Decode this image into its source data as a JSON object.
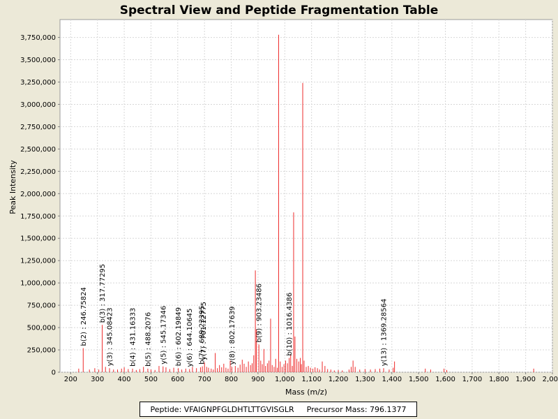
{
  "chart_data": {
    "type": "bar",
    "title": "Spectral View and Peptide Fragmentation Table",
    "xlabel": "Mass (m/z)",
    "ylabel": "Peak Intensity",
    "xlim": [
      160,
      2000
    ],
    "ylim": [
      0,
      3950000
    ],
    "xticks": [
      200,
      300,
      400,
      500,
      600,
      700,
      800,
      900,
      1000,
      1100,
      1200,
      1300,
      1400,
      1500,
      1600,
      1700,
      1800,
      1900,
      2000
    ],
    "xtick_labels": [
      "200",
      "300",
      "400",
      "500",
      "600",
      "700",
      "800",
      "900",
      "1,000",
      "1,100",
      "1,200",
      "1,300",
      "1,400",
      "1,500",
      "1,600",
      "1,700",
      "1,800",
      "1,900",
      "2,000"
    ],
    "yticks": [
      0,
      250000,
      500000,
      750000,
      1000000,
      1250000,
      1500000,
      1750000,
      2000000,
      2250000,
      2500000,
      2750000,
      3000000,
      3250000,
      3500000,
      3750000
    ],
    "ytick_labels": [
      "0",
      "250,000",
      "500,000",
      "750,000",
      "1,000,000",
      "1,250,000",
      "1,500,000",
      "1,750,000",
      "2,000,000",
      "2,250,000",
      "2,500,000",
      "2,750,000",
      "3,000,000",
      "3,250,000",
      "3,500,000",
      "3,750,000"
    ],
    "grid": true,
    "peak_color": "#ee2b2b",
    "peaks": [
      {
        "x": 230,
        "y": 40000
      },
      {
        "x": 246.75824,
        "y": 270000
      },
      {
        "x": 270,
        "y": 30000
      },
      {
        "x": 290,
        "y": 45000
      },
      {
        "x": 305,
        "y": 30000
      },
      {
        "x": 317.77295,
        "y": 530000
      },
      {
        "x": 330,
        "y": 60000
      },
      {
        "x": 345.08423,
        "y": 45000
      },
      {
        "x": 360,
        "y": 30000
      },
      {
        "x": 375,
        "y": 30000
      },
      {
        "x": 390,
        "y": 40000
      },
      {
        "x": 400,
        "y": 55000
      },
      {
        "x": 415,
        "y": 35000
      },
      {
        "x": 431.16333,
        "y": 40000
      },
      {
        "x": 445,
        "y": 25000
      },
      {
        "x": 458,
        "y": 35000
      },
      {
        "x": 472,
        "y": 60000
      },
      {
        "x": 488.2076,
        "y": 40000
      },
      {
        "x": 500,
        "y": 30000
      },
      {
        "x": 515,
        "y": 25000
      },
      {
        "x": 530,
        "y": 70000
      },
      {
        "x": 545.17346,
        "y": 65000
      },
      {
        "x": 556,
        "y": 55000
      },
      {
        "x": 570,
        "y": 35000
      },
      {
        "x": 585,
        "y": 50000
      },
      {
        "x": 602.19849,
        "y": 45000
      },
      {
        "x": 615,
        "y": 30000
      },
      {
        "x": 630,
        "y": 40000
      },
      {
        "x": 644.10645,
        "y": 35000
      },
      {
        "x": 655,
        "y": 60000
      },
      {
        "x": 670,
        "y": 45000
      },
      {
        "x": 685,
        "y": 55000
      },
      {
        "x": 692,
        "y": 65000
      },
      {
        "x": 700,
        "y": 110000
      },
      {
        "x": 708,
        "y": 60000
      },
      {
        "x": 715,
        "y": 50000
      },
      {
        "x": 725,
        "y": 40000
      },
      {
        "x": 733,
        "y": 30000
      },
      {
        "x": 740,
        "y": 215000
      },
      {
        "x": 748,
        "y": 45000
      },
      {
        "x": 756,
        "y": 80000
      },
      {
        "x": 764,
        "y": 55000
      },
      {
        "x": 772,
        "y": 95000
      },
      {
        "x": 780,
        "y": 50000
      },
      {
        "x": 788,
        "y": 40000
      },
      {
        "x": 796,
        "y": 130000
      },
      {
        "x": 802.17639,
        "y": 60000
      },
      {
        "x": 815,
        "y": 70000
      },
      {
        "x": 825,
        "y": 50000
      },
      {
        "x": 833,
        "y": 85000
      },
      {
        "x": 841,
        "y": 140000
      },
      {
        "x": 848,
        "y": 95000
      },
      {
        "x": 856,
        "y": 60000
      },
      {
        "x": 864,
        "y": 120000
      },
      {
        "x": 872,
        "y": 80000
      },
      {
        "x": 878,
        "y": 100000
      },
      {
        "x": 884,
        "y": 190000
      },
      {
        "x": 890,
        "y": 1140000
      },
      {
        "x": 894,
        "y": 480000
      },
      {
        "x": 903.2349,
        "y": 310000
      },
      {
        "x": 910,
        "y": 130000
      },
      {
        "x": 916,
        "y": 90000
      },
      {
        "x": 922,
        "y": 260000
      },
      {
        "x": 928,
        "y": 70000
      },
      {
        "x": 935,
        "y": 100000
      },
      {
        "x": 941,
        "y": 130000
      },
      {
        "x": 947,
        "y": 600000
      },
      {
        "x": 953,
        "y": 80000
      },
      {
        "x": 960,
        "y": 60000
      },
      {
        "x": 966,
        "y": 150000
      },
      {
        "x": 972,
        "y": 50000
      },
      {
        "x": 977,
        "y": 3780000
      },
      {
        "x": 983,
        "y": 120000
      },
      {
        "x": 990,
        "y": 60000
      },
      {
        "x": 997,
        "y": 90000
      },
      {
        "x": 1003,
        "y": 130000
      },
      {
        "x": 1010,
        "y": 100000
      },
      {
        "x": 1016.4386,
        "y": 160000
      },
      {
        "x": 1022,
        "y": 200000
      },
      {
        "x": 1028,
        "y": 70000
      },
      {
        "x": 1033,
        "y": 1790000
      },
      {
        "x": 1038,
        "y": 400000
      },
      {
        "x": 1045,
        "y": 150000
      },
      {
        "x": 1052,
        "y": 120000
      },
      {
        "x": 1058,
        "y": 160000
      },
      {
        "x": 1062,
        "y": 90000
      },
      {
        "x": 1067,
        "y": 3240000
      },
      {
        "x": 1072,
        "y": 130000
      },
      {
        "x": 1080,
        "y": 60000
      },
      {
        "x": 1088,
        "y": 70000
      },
      {
        "x": 1096,
        "y": 50000
      },
      {
        "x": 1105,
        "y": 40000
      },
      {
        "x": 1113,
        "y": 55000
      },
      {
        "x": 1122,
        "y": 45000
      },
      {
        "x": 1130,
        "y": 30000
      },
      {
        "x": 1140,
        "y": 120000
      },
      {
        "x": 1150,
        "y": 70000
      },
      {
        "x": 1160,
        "y": 35000
      },
      {
        "x": 1172,
        "y": 30000
      },
      {
        "x": 1185,
        "y": 20000
      },
      {
        "x": 1200,
        "y": 25000
      },
      {
        "x": 1215,
        "y": 20000
      },
      {
        "x": 1240,
        "y": 30000
      },
      {
        "x": 1248,
        "y": 60000
      },
      {
        "x": 1255,
        "y": 130000
      },
      {
        "x": 1263,
        "y": 60000
      },
      {
        "x": 1280,
        "y": 30000
      },
      {
        "x": 1300,
        "y": 35000
      },
      {
        "x": 1320,
        "y": 30000
      },
      {
        "x": 1338,
        "y": 35000
      },
      {
        "x": 1355,
        "y": 40000
      },
      {
        "x": 1369.28564,
        "y": 45000
      },
      {
        "x": 1390,
        "y": 30000
      },
      {
        "x": 1405,
        "y": 50000
      },
      {
        "x": 1410,
        "y": 120000
      },
      {
        "x": 1525,
        "y": 40000
      },
      {
        "x": 1545,
        "y": 30000
      },
      {
        "x": 1595,
        "y": 40000
      },
      {
        "x": 1605,
        "y": 25000
      },
      {
        "x": 1930,
        "y": 40000
      }
    ],
    "annotations": [
      {
        "x": 246.75824,
        "y": 270000,
        "label": "b(2) : 246.75824"
      },
      {
        "x": 317.77295,
        "y": 530000,
        "label": "b(3) : 317.77295"
      },
      {
        "x": 345.08423,
        "y": 45000,
        "label": "y(3) : 345.08423"
      },
      {
        "x": 431.16333,
        "y": 40000,
        "label": "b(4) : 431.16333"
      },
      {
        "x": 488.2076,
        "y": 40000,
        "label": "b(5) : 488.2076"
      },
      {
        "x": 545.17346,
        "y": 65000,
        "label": "y(5) : 545.17346"
      },
      {
        "x": 602.19849,
        "y": 45000,
        "label": "b(6) : 602.19849"
      },
      {
        "x": 644.10645,
        "y": 35000,
        "label": "y(6) : 644.10645"
      },
      {
        "x": 688.5,
        "y": 65000,
        "label": "b(7) : 689.23395"
      },
      {
        "x": 695.5,
        "y": 110000,
        "label": "y(7) : 701.12775"
      },
      {
        "x": 802.17639,
        "y": 60000,
        "label": "y(8) : 802.17639"
      },
      {
        "x": 903.2349,
        "y": 310000,
        "label": "b(9) : 903.23486"
      },
      {
        "x": 1016.4386,
        "y": 160000,
        "label": "b(10) : 1016.4386"
      },
      {
        "x": 1369.28564,
        "y": 45000,
        "label": "y(13) : 1369.28564"
      }
    ]
  },
  "legend": {
    "peptide": "Peptide: VFAIGNPFGLDHTLTTGVISGLR",
    "precursor": "Precursor Mass: 796.1377"
  }
}
